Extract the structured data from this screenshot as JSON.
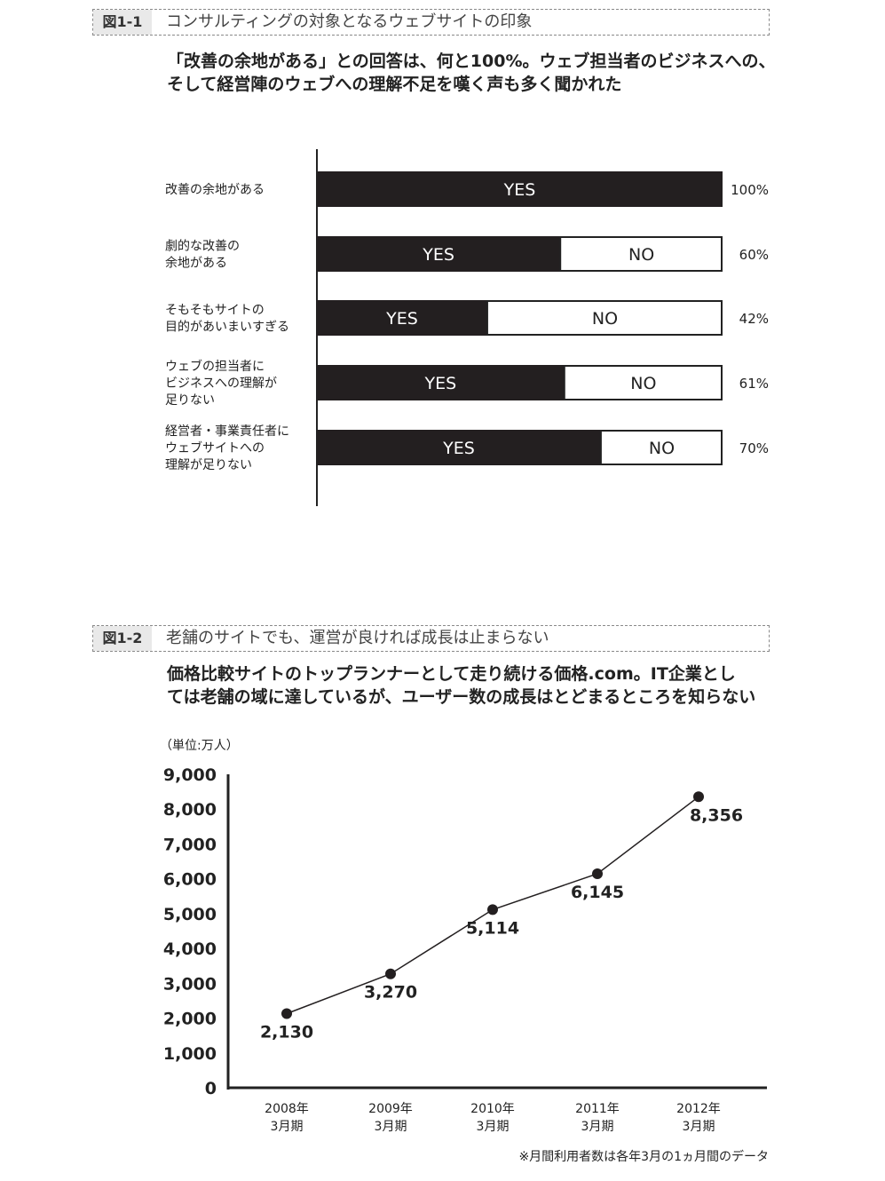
{
  "figure1": {
    "number": "図1-1",
    "title": "コンサルティングの対象となるウェブサイトの印象",
    "lead_lines": [
      "「改善の余地がある」との回答は、何と100%。ウェブ担当者のビジネスへの、",
      "そして経営陣のウェブへの理解不足を嘆く声も多く聞かれた"
    ]
  },
  "figure2": {
    "number": "図1-2",
    "title": "老舗のサイトでも、運営が良ければ成長は止まらない",
    "lead_lines": [
      "価格比較サイトのトップランナーとして走り続ける価格.com。IT企業とし",
      "ては老舗の域に達しているが、ユーザー数の成長はとどまるところを知らない"
    ],
    "footnote": "※月間利用者数は各年3月の1ヵ月間のデータ"
  },
  "chart_data": [
    {
      "type": "bar",
      "orientation": "horizontal",
      "stacked": true,
      "categories": [
        [
          "改善の余地がある"
        ],
        [
          "劇的な改善の",
          "余地がある"
        ],
        [
          "そもそもサイトの",
          "目的があいまいすぎる"
        ],
        [
          "ウェブの担当者に",
          "ビジネスへの理解が",
          "足りない"
        ],
        [
          "経営者・事業責任者に",
          "ウェブサイトへの",
          "理解が足りない"
        ]
      ],
      "series": [
        {
          "name": "YES",
          "values": [
            100,
            60,
            42,
            61,
            70
          ],
          "color": "#231f20"
        },
        {
          "name": "NO",
          "values": [
            0,
            40,
            58,
            39,
            30
          ],
          "color": "#ffffff"
        }
      ],
      "value_labels": [
        "100%",
        "60%",
        "42%",
        "61%",
        "70%"
      ],
      "xlim": [
        0,
        100
      ]
    },
    {
      "type": "line",
      "unit_label": "（単位:万人）",
      "categories": [
        [
          "2008年",
          "3月期"
        ],
        [
          "2009年",
          "3月期"
        ],
        [
          "2010年",
          "3月期"
        ],
        [
          "2011年",
          "3月期"
        ],
        [
          "2012年",
          "3月期"
        ]
      ],
      "values": [
        2130,
        3270,
        5114,
        6145,
        8356
      ],
      "value_labels": [
        "2,130",
        "3,270",
        "5,114",
        "6,145",
        "8,356"
      ],
      "yticks": [
        "0",
        "1,000",
        "2,000",
        "3,000",
        "4,000",
        "5,000",
        "6,000",
        "7,000",
        "8,000",
        "9,000"
      ],
      "ylim": [
        0,
        9000
      ],
      "color": "#231f20"
    }
  ]
}
